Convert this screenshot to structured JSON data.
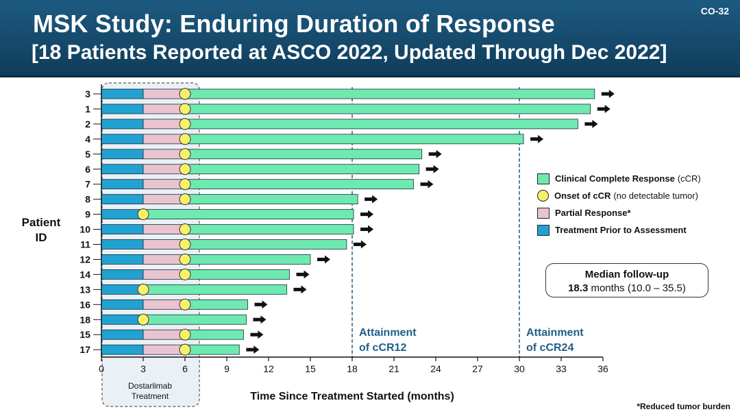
{
  "header": {
    "title": "MSK Study: Enduring Duration of Response",
    "subtitle": "[18 Patients Reported at ASCO 2022, Updated Through Dec 2022]",
    "slide_number": "CO-32"
  },
  "colors": {
    "treatment": "#22a2d2",
    "partial": "#e9c3cf",
    "ccr": "#6eeab0",
    "onset": "#f7f16a",
    "ref_line": "#1f5e88",
    "ref_text": "#1f5e88"
  },
  "chart_data": {
    "type": "bar",
    "orientation": "horizontal",
    "title": "MSK Study: Enduring Duration of Response",
    "xlabel": "Time Since Treatment Started (months)",
    "ylabel": "Patient ID",
    "xlim": [
      0,
      36
    ],
    "xticks": [
      0,
      3,
      6,
      9,
      12,
      15,
      18,
      21,
      24,
      27,
      30,
      33,
      36
    ],
    "patients": [
      {
        "id": "3",
        "treatment_end": 3,
        "onset": 6,
        "end": 35.4,
        "ongoing": true
      },
      {
        "id": "1",
        "treatment_end": 3,
        "onset": 6,
        "end": 35.1,
        "ongoing": true
      },
      {
        "id": "2",
        "treatment_end": 3,
        "onset": 6,
        "end": 34.2,
        "ongoing": true
      },
      {
        "id": "4",
        "treatment_end": 3,
        "onset": 6,
        "end": 30.3,
        "ongoing": true
      },
      {
        "id": "5",
        "treatment_end": 3,
        "onset": 6,
        "end": 23.0,
        "ongoing": true
      },
      {
        "id": "6",
        "treatment_end": 3,
        "onset": 6,
        "end": 22.8,
        "ongoing": true
      },
      {
        "id": "7",
        "treatment_end": 3,
        "onset": 6,
        "end": 22.4,
        "ongoing": true
      },
      {
        "id": "8",
        "treatment_end": 3,
        "onset": 6,
        "end": 18.4,
        "ongoing": true
      },
      {
        "id": "9",
        "treatment_end": 3,
        "onset": 3,
        "end": 18.1,
        "ongoing": true
      },
      {
        "id": "10",
        "treatment_end": 3,
        "onset": 6,
        "end": 18.1,
        "ongoing": true
      },
      {
        "id": "11",
        "treatment_end": 3,
        "onset": 6,
        "end": 17.6,
        "ongoing": true
      },
      {
        "id": "12",
        "treatment_end": 3,
        "onset": 6,
        "end": 15.0,
        "ongoing": true
      },
      {
        "id": "14",
        "treatment_end": 3,
        "onset": 6,
        "end": 13.5,
        "ongoing": true
      },
      {
        "id": "13",
        "treatment_end": 3,
        "onset": 3,
        "end": 13.3,
        "ongoing": true
      },
      {
        "id": "16",
        "treatment_end": 3,
        "onset": 6,
        "end": 10.5,
        "ongoing": true
      },
      {
        "id": "18",
        "treatment_end": 3,
        "onset": 3,
        "end": 10.4,
        "ongoing": true
      },
      {
        "id": "15",
        "treatment_end": 3,
        "onset": 6,
        "end": 10.2,
        "ongoing": true
      },
      {
        "id": "17",
        "treatment_end": 3,
        "onset": 6,
        "end": 9.9,
        "ongoing": true
      }
    ],
    "reference_lines": [
      {
        "x": 18,
        "label_line1": "Attainment",
        "label_line2": "of cCR12"
      },
      {
        "x": 30,
        "label_line1": "Attainment",
        "label_line2": "of cCR24"
      }
    ],
    "dostarlimab_label_line1": "Dostarlimab",
    "dostarlimab_label_line2": "Treatment"
  },
  "legend": {
    "ccr_label": "Clinical Complete Response",
    "ccr_note": "(cCR)",
    "onset_label": "Onset of cCR",
    "onset_note": "(no detectable tumor)",
    "partial_label": "Partial Response*",
    "treatment_label": "Treatment Prior to Assessment"
  },
  "followup": {
    "title": "Median follow-up",
    "value": "18.3",
    "rest": "months (10.0 – 35.5)"
  },
  "y_axis_title_line1": "Patient",
  "y_axis_title_line2": "ID",
  "footnote": "*Reduced tumor burden"
}
